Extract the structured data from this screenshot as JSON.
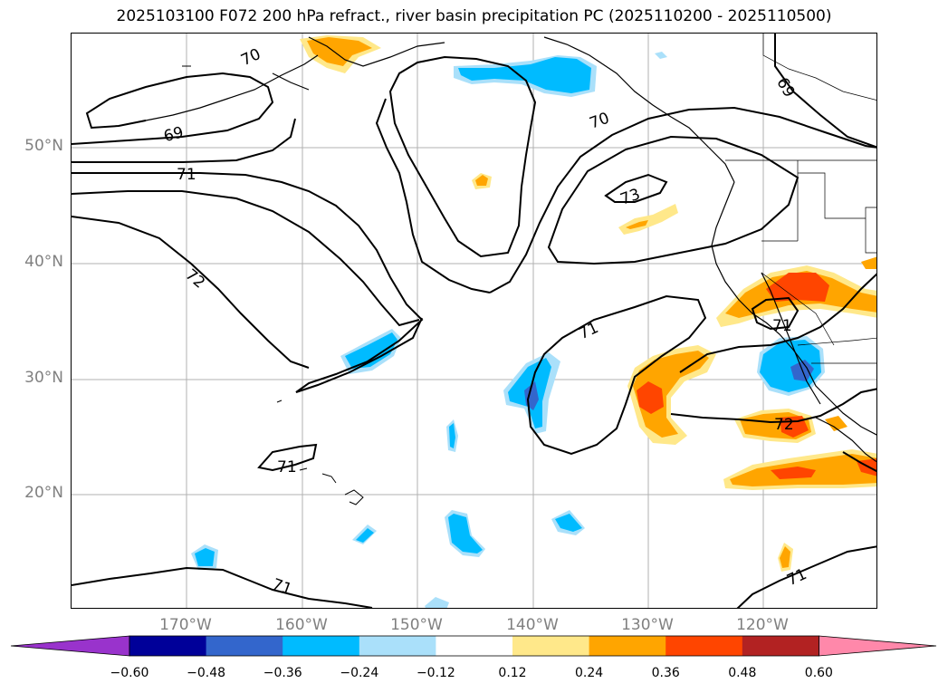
{
  "title": "2025103100 F072 200 hPa refract., river basin precipitation PC (2025110200 - 2025110500)",
  "lat_labels": [
    "50°N",
    "40°N",
    "30°N",
    "20°N"
  ],
  "lon_labels": [
    "170°W",
    "160°W",
    "150°W",
    "140°W",
    "130°W",
    "120°W"
  ],
  "colorbar": {
    "levels": [
      "−0.60",
      "−0.48",
      "−0.36",
      "−0.24",
      "−0.12",
      "0.12",
      "0.24",
      "0.36",
      "0.48",
      "0.60"
    ],
    "colors": [
      "#9933cc",
      "#000099",
      "#3366cc",
      "#00bbff",
      "#aae0fa",
      "#ffffff",
      "#ffe88a",
      "#ffa500",
      "#ff4500",
      "#b22222",
      "#ff88aa"
    ]
  },
  "contour_labels": [
    "70",
    "69",
    "71",
    "72",
    "70",
    "73",
    "69",
    "71",
    "71",
    "71",
    "72",
    "71",
    "71"
  ]
}
